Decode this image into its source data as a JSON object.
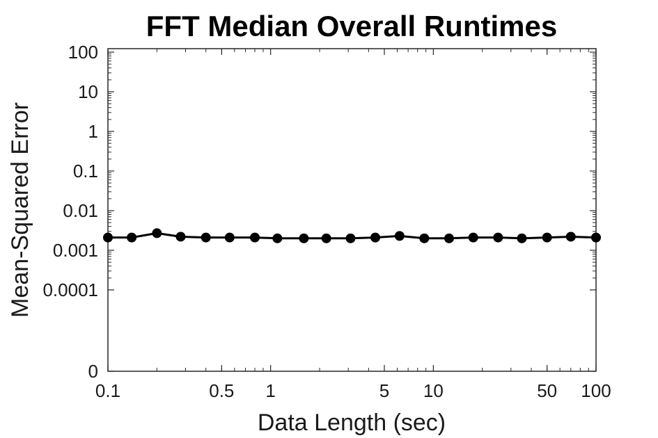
{
  "chart_data": {
    "type": "line",
    "title": "FFT Median Overall Runtimes",
    "xlabel": "Data Length (sec)",
    "ylabel": "Mean-Squared Error",
    "x_scale": "log",
    "y_scale": "log",
    "xlim": [
      0.1,
      100
    ],
    "ylim": [
      0,
      100
    ],
    "x_ticks": [
      {
        "value": 0.1,
        "label": "0.1"
      },
      {
        "value": 0.5,
        "label": "0.5"
      },
      {
        "value": 1,
        "label": "1"
      },
      {
        "value": 5,
        "label": "5"
      },
      {
        "value": 10,
        "label": "10"
      },
      {
        "value": 50,
        "label": "50"
      },
      {
        "value": 100,
        "label": "100"
      }
    ],
    "y_ticks": [
      {
        "value": 0,
        "label": "0"
      },
      {
        "value": 0.0001,
        "label": "0.0001"
      },
      {
        "value": 0.001,
        "label": "0.001"
      },
      {
        "value": 0.01,
        "label": "0.01"
      },
      {
        "value": 0.1,
        "label": "0.1"
      },
      {
        "value": 1,
        "label": "1"
      },
      {
        "value": 10,
        "label": "10"
      },
      {
        "value": 100,
        "label": "100"
      }
    ],
    "grid": false,
    "series": [
      {
        "color": "#000000",
        "marker": "circle",
        "x": [
          0.1,
          0.14,
          0.2,
          0.28,
          0.4,
          0.56,
          0.8,
          1.1,
          1.6,
          2.2,
          3.1,
          4.4,
          6.2,
          8.8,
          12.5,
          17.6,
          25,
          35,
          50,
          70,
          100
        ],
        "y": [
          0.0021,
          0.0021,
          0.0027,
          0.0022,
          0.0021,
          0.0021,
          0.0021,
          0.002,
          0.002,
          0.002,
          0.002,
          0.0021,
          0.0023,
          0.002,
          0.002,
          0.0021,
          0.0021,
          0.002,
          0.0021,
          0.0022,
          0.0021
        ]
      }
    ]
  }
}
